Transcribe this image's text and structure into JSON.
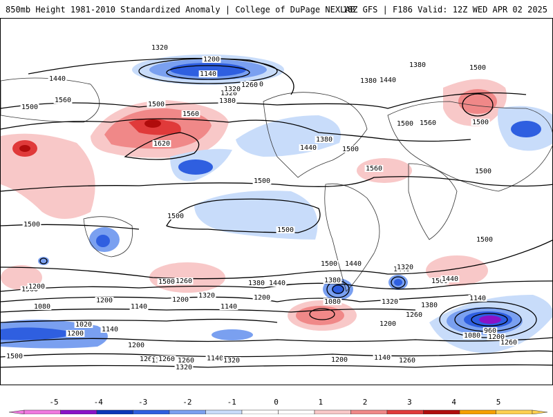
{
  "header": {
    "left_title": "850mb Height 1981-2010 Standardized Anomaly | College of DuPage NEXLAB",
    "right_title": "18Z GFS | F186 Valid: 12Z WED APR 02 2025"
  },
  "contour_labels": [
    "1320",
    "1200",
    "1140",
    "1260",
    "1380",
    "1440",
    "1320",
    "1380",
    "1500",
    "1560",
    "1620",
    "1500",
    "1440",
    "1500",
    "1560",
    "1380",
    "1500",
    "1560",
    "1500",
    "1500",
    "1500",
    "1500",
    "1500",
    "1500",
    "1500",
    "1440",
    "1560",
    "1500",
    "1380",
    "1440",
    "1500",
    "1320",
    "1260",
    "1200",
    "1140",
    "1080",
    "1020",
    "1140",
    "1200",
    "1260",
    "1320",
    "1380",
    "1440",
    "1500",
    "1560",
    "1320",
    "1260",
    "1200",
    "1140",
    "1080",
    "1200",
    "1200",
    "1260",
    "1140",
    "1320",
    "1200",
    "1140",
    "1260",
    "1500",
    "1440",
    "1560",
    "1380",
    "1320",
    "1200",
    "1260",
    "1140",
    "960",
    "1080",
    "1200",
    "1260",
    "1320",
    "1440",
    "1380",
    "1500",
    "1320",
    "1260",
    "1200"
  ],
  "colorbar": {
    "ticks": [
      "-5",
      "-4",
      "-3",
      "-2",
      "-1",
      "0",
      "1",
      "2",
      "3",
      "4",
      "5"
    ],
    "colors": [
      "#f078e0",
      "#8a12c8",
      "#0a36b8",
      "#2f5fe0",
      "#7aa0f0",
      "#c8dcfa",
      "#ffffff",
      "#ffffff",
      "#f8c8c8",
      "#f08888",
      "#e03a3a",
      "#b00c0c",
      "#f5a000",
      "#ffd050"
    ]
  }
}
